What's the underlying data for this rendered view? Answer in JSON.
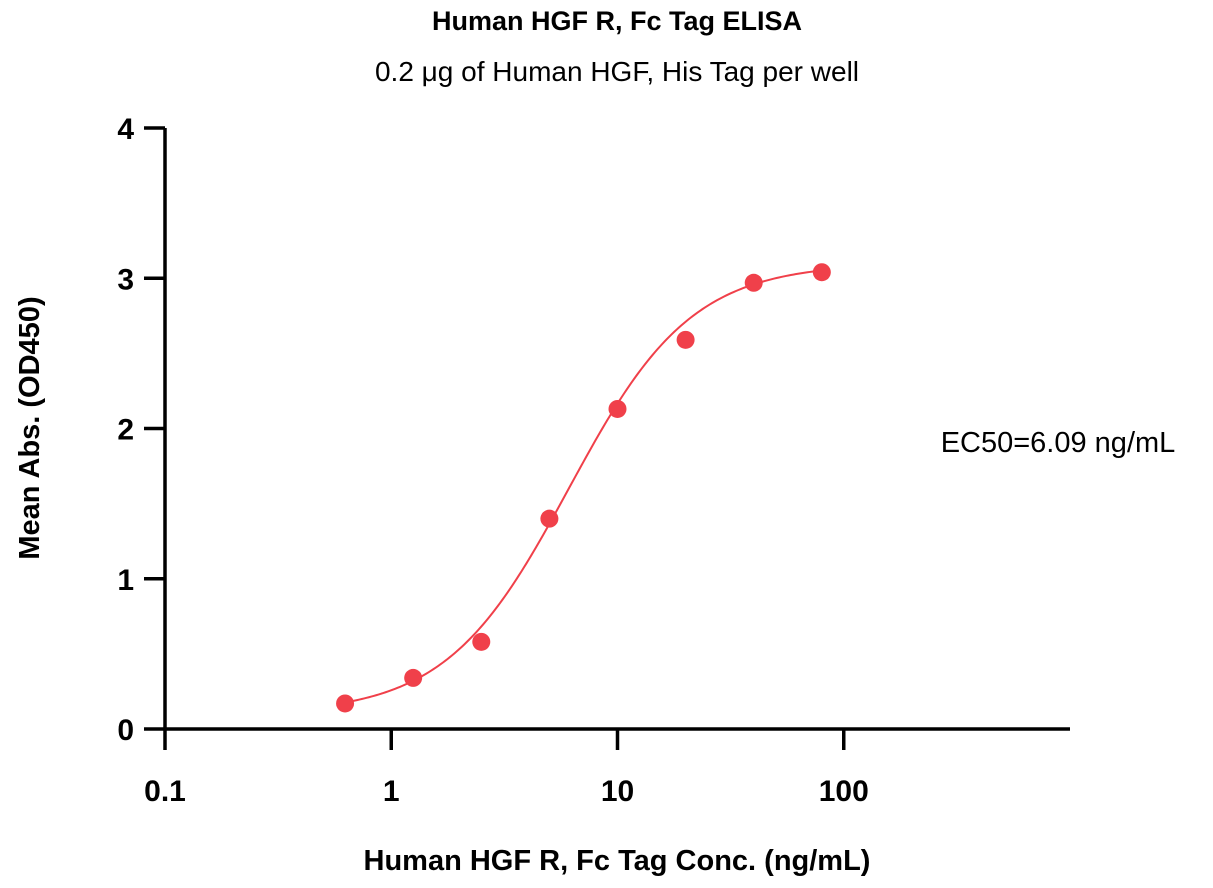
{
  "chart_data": {
    "type": "scatter",
    "title": "Human HGF R, Fc Tag ELISA",
    "subtitle": "0.2 μg of Human HGF, His Tag per well",
    "xlabel": "Human HGF R, Fc Tag Conc. (ng/mL)",
    "ylabel": "Mean Abs. (OD450)",
    "x_scale": "log",
    "xlim": [
      0.1,
      1000
    ],
    "ylim": [
      0,
      4
    ],
    "x_ticks": [
      0.1,
      1,
      10,
      100
    ],
    "x_tick_labels": [
      "0.1",
      "1",
      "10",
      "100"
    ],
    "y_ticks": [
      0,
      1,
      2,
      3,
      4
    ],
    "y_tick_labels": [
      "0",
      "1",
      "2",
      "3",
      "4"
    ],
    "grid": false,
    "series": [
      {
        "x": [
          0.625,
          1.25,
          2.5,
          5,
          10,
          20,
          40,
          80
        ],
        "y": [
          0.17,
          0.34,
          0.58,
          1.4,
          2.13,
          2.59,
          2.97,
          3.04
        ],
        "color": "#f0404a",
        "fit": {
          "model": "4PL",
          "bottom": 0.1,
          "top": 3.1,
          "ec50": 6.09,
          "hill": 1.6
        }
      }
    ],
    "annotation": "EC50=6.09 ng/mL"
  }
}
